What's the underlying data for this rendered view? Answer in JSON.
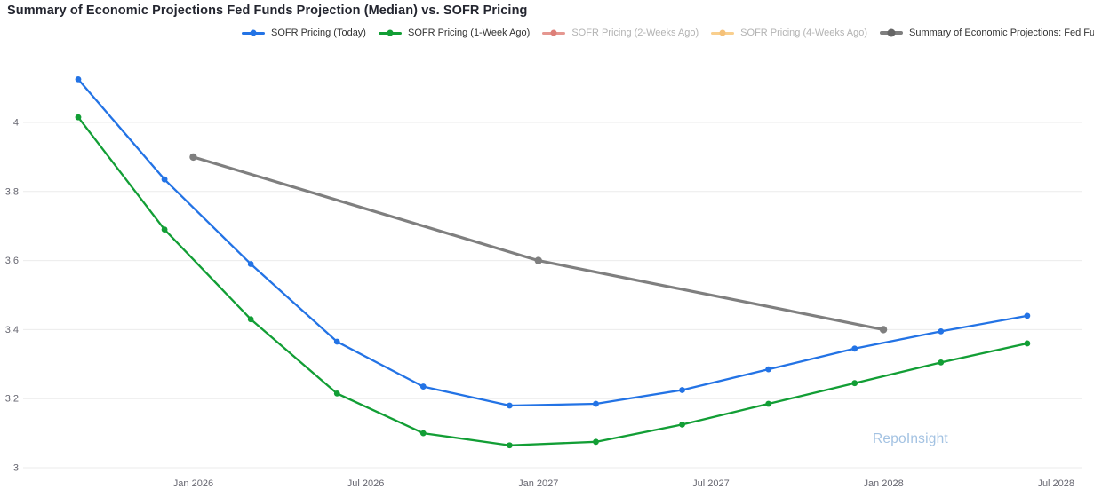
{
  "title": "Summary of Economic Projections Fed Funds Projection (Median) vs. SOFR Pricing",
  "watermark": "RepoInsight",
  "colors": {
    "blue": "#2373E5",
    "green": "#129E35",
    "gray": "#7F7F7F",
    "faded_red_line": "#E59790",
    "faded_red_dot": "#DD7F78",
    "faded_orange_line": "#F9CF8E",
    "faded_orange_dot": "#F5C178",
    "axis_text": "#666670",
    "gridline": "#EBEBEB",
    "disabled_text": "#B3B3B3",
    "watermark_text": "#A3C2E2"
  },
  "legend": [
    {
      "label": "SOFR Pricing (Today)",
      "line_color": "#2373E5",
      "dot_color": "#2373E5",
      "active": true,
      "thick": false
    },
    {
      "label": "SOFR Pricing (1-Week Ago)",
      "line_color": "#129E35",
      "dot_color": "#129E35",
      "active": true,
      "thick": false
    },
    {
      "label": "SOFR Pricing (2-Weeks Ago)",
      "line_color": "#E59790",
      "dot_color": "#DD7F78",
      "active": false,
      "thick": false
    },
    {
      "label": "SOFR Pricing (4-Weeks Ago)",
      "line_color": "#F9CF8E",
      "dot_color": "#F5C178",
      "active": false,
      "thick": false
    },
    {
      "label": "Summary of Economic Projections: Fed Funds Rate",
      "line_color": "#7F7F7F",
      "dot_color": "#666666",
      "active": true,
      "thick": true
    }
  ],
  "chart_data": {
    "type": "line",
    "title": "Summary of Economic Projections Fed Funds Projection (Median) vs. SOFR Pricing",
    "xlabel": "",
    "ylabel": "",
    "grid": "horizontal-only",
    "legend_position": "top-center",
    "y_axis": {
      "ticks": [
        {
          "label": "3",
          "value": 3.0
        },
        {
          "label": "3.2",
          "value": 3.2
        },
        {
          "label": "3.4",
          "value": 3.4
        },
        {
          "label": "3.6",
          "value": 3.6
        },
        {
          "label": "3.8",
          "value": 3.8
        },
        {
          "label": "4",
          "value": 4.0
        }
      ],
      "ylim": [
        3.0,
        4.175
      ]
    },
    "x_axis": {
      "unit": "months_after_Sep_2025",
      "xlim_months": [
        -2.7,
        35.3
      ],
      "ticks": [
        {
          "label": "Jan 2026",
          "m": 4
        },
        {
          "label": "Jul 2026",
          "m": 10
        },
        {
          "label": "Jan 2027",
          "m": 16
        },
        {
          "label": "Jul 2027",
          "m": 22
        },
        {
          "label": "Jan 2028",
          "m": 28
        },
        {
          "label": "Jul 2028",
          "m": 34
        }
      ]
    },
    "series": [
      {
        "name": "SOFR Pricing (Today)",
        "color": "#2373E5",
        "visible": true,
        "line_width": 2.3,
        "marker_radius": 3.4,
        "x_labels": [
          "Sep 2025",
          "Dec 2025",
          "Mar 2026",
          "Jun 2026",
          "Sep 2026",
          "Dec 2026",
          "Mar 2027",
          "Jun 2027",
          "Sep 2027",
          "Dec 2027",
          "Mar 2028",
          "Jun 2028"
        ],
        "month_index": [
          0,
          3,
          6,
          9,
          12,
          15,
          18,
          21,
          24,
          27,
          30,
          33
        ],
        "values": [
          4.125,
          3.835,
          3.59,
          3.365,
          3.235,
          3.18,
          3.185,
          3.225,
          3.285,
          3.345,
          3.395,
          3.44
        ]
      },
      {
        "name": "SOFR Pricing (1-Week Ago)",
        "color": "#129E35",
        "visible": true,
        "line_width": 2.3,
        "marker_radius": 3.4,
        "x_labels": [
          "Sep 2025",
          "Dec 2025",
          "Mar 2026",
          "Jun 2026",
          "Sep 2026",
          "Dec 2026",
          "Mar 2027",
          "Jun 2027",
          "Sep 2027",
          "Dec 2027",
          "Mar 2028",
          "Jun 2028"
        ],
        "month_index": [
          0,
          3,
          6,
          9,
          12,
          15,
          18,
          21,
          24,
          27,
          30,
          33
        ],
        "values": [
          4.015,
          3.69,
          3.43,
          3.215,
          3.1,
          3.065,
          3.075,
          3.125,
          3.185,
          3.245,
          3.305,
          3.36
        ]
      },
      {
        "name": "SOFR Pricing (2-Weeks Ago)",
        "color": "#E59790",
        "visible": false,
        "x_labels": [],
        "month_index": [],
        "values": []
      },
      {
        "name": "SOFR Pricing (4-Weeks Ago)",
        "color": "#F9CF8E",
        "visible": false,
        "x_labels": [],
        "month_index": [],
        "values": []
      },
      {
        "name": "Summary of Economic Projections: Fed Funds Rate",
        "color": "#7F7F7F",
        "visible": true,
        "line_width": 3.2,
        "marker_radius": 4.2,
        "x_labels": [
          "Jan 2026",
          "Jan 2027",
          "Jan 2028"
        ],
        "month_index": [
          4,
          16,
          28
        ],
        "values": [
          3.9,
          3.6,
          3.4
        ]
      }
    ]
  }
}
